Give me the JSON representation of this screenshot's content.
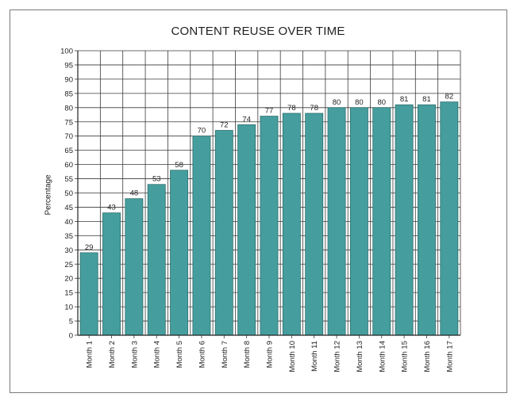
{
  "chart_data": {
    "type": "bar",
    "title": "CONTENT REUSE OVER TIME",
    "xlabel": "",
    "ylabel": "Percentage",
    "categories": [
      "Month 1",
      "Month 2",
      "Month 3",
      "Month 4",
      "Month 5",
      "Month 6",
      "Month 7",
      "Month 8",
      "Month 9",
      "Month 10",
      "Month 11",
      "Month 12",
      "Month 13",
      "Month 14",
      "Month 15",
      "Month 16",
      "Month 17"
    ],
    "values": [
      29,
      43,
      48,
      53,
      58,
      70,
      72,
      74,
      77,
      78,
      78,
      80,
      80,
      80,
      81,
      81,
      82
    ],
    "ylim": [
      0,
      100
    ],
    "ytick_step": 5,
    "grid": true,
    "legend": "none",
    "bar_color": "#459e9d",
    "bar_edge_color": "#2f6f6e",
    "grid_color": "#3a3a3a"
  }
}
